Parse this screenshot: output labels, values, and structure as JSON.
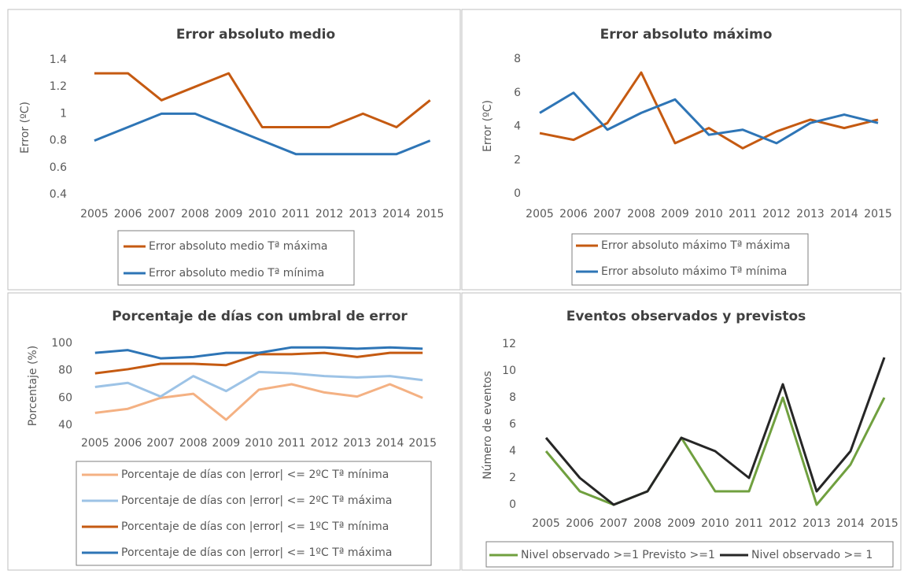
{
  "chart_data": [
    {
      "type": "line",
      "title": "Error absoluto medio",
      "y_label": "Error (ºC)",
      "categories": [
        "2005",
        "2006",
        "2007",
        "2008",
        "2009",
        "2010",
        "2011",
        "2012",
        "2013",
        "2014",
        "2015"
      ],
      "series": [
        {
          "name": "Error absoluto medio Tª máxima",
          "color": "#c55a11",
          "values": [
            1.3,
            1.3,
            1.1,
            1.2,
            1.3,
            0.9,
            0.9,
            0.9,
            1.0,
            0.9,
            1.1
          ]
        },
        {
          "name": "Error absoluto medio Tª mínima",
          "color": "#2e75b6",
          "values": [
            0.8,
            0.9,
            1.0,
            1.0,
            0.9,
            0.8,
            0.7,
            0.7,
            0.7,
            0.7,
            0.8
          ]
        }
      ],
      "ylim": [
        0.4,
        1.4
      ],
      "yticks": [
        0.4,
        0.6,
        0.8,
        1,
        1.2,
        1.4
      ],
      "grid": false
    },
    {
      "type": "line",
      "title": "Error absoluto máximo",
      "y_label": "Error (ºC)",
      "categories": [
        "2005",
        "2006",
        "2007",
        "2008",
        "2009",
        "2010",
        "2011",
        "2012",
        "2013",
        "2014",
        "2015"
      ],
      "series": [
        {
          "name": "Error absoluto máximo Tª máxima",
          "color": "#c55a11",
          "values": [
            3.6,
            3.2,
            4.2,
            7.2,
            3.0,
            3.9,
            2.7,
            3.7,
            4.4,
            3.9,
            4.4
          ]
        },
        {
          "name": "Error absoluto máximo Tª mínima",
          "color": "#2e75b6",
          "values": [
            4.8,
            6.0,
            3.8,
            4.8,
            5.6,
            3.5,
            3.8,
            3.0,
            4.2,
            4.7,
            4.2
          ]
        }
      ],
      "ylim": [
        0,
        8
      ],
      "yticks": [
        0,
        2,
        4,
        6,
        8
      ],
      "grid": false
    },
    {
      "type": "line",
      "title": "Porcentaje de días con umbral de error",
      "y_label": "Porcentaje (%)",
      "categories": [
        "2005",
        "2006",
        "2007",
        "2008",
        "2009",
        "2010",
        "2011",
        "2012",
        "2013",
        "2014",
        "2015"
      ],
      "series": [
        {
          "name": "Porcentaje de días con |error| <= 2ºC Tª mínima",
          "color": "#f4b183",
          "values": [
            49,
            52,
            60,
            63,
            44,
            66,
            70,
            64,
            61,
            70,
            60
          ]
        },
        {
          "name": "Porcentaje de días con |error| <= 2ºC Tª máxima",
          "color": "#9dc3e6",
          "values": [
            68,
            71,
            61,
            76,
            65,
            79,
            78,
            76,
            75,
            76,
            73
          ]
        },
        {
          "name": "Porcentaje de días con |error| <= 1ºC Tª mínima",
          "color": "#c55a11",
          "values": [
            78,
            81,
            85,
            85,
            84,
            92,
            92,
            93,
            90,
            93,
            93
          ]
        },
        {
          "name": "Porcentaje de días con |error| <= 1ºC Tª máxima",
          "color": "#2e75b6",
          "values": [
            93,
            95,
            89,
            90,
            93,
            93,
            97,
            97,
            96,
            97,
            96
          ]
        }
      ],
      "ylim": [
        40,
        100
      ],
      "yticks": [
        40,
        60,
        80,
        100
      ],
      "grid": false
    },
    {
      "type": "line",
      "title": "Eventos observados y previstos",
      "y_label": "Número de eventos",
      "categories": [
        "2005",
        "2006",
        "2007",
        "2008",
        "2009",
        "2010",
        "2011",
        "2012",
        "2013",
        "2014",
        "2015"
      ],
      "series": [
        {
          "name": "Nivel observado >=1 Previsto >=1",
          "color": "#70a03f",
          "values": [
            4,
            1,
            0,
            1,
            5,
            1,
            1,
            8,
            0,
            3,
            8
          ]
        },
        {
          "name": "Nivel observado >= 1",
          "color": "#262626",
          "values": [
            5,
            2,
            0,
            1,
            5,
            4,
            2,
            9,
            1,
            4,
            11
          ]
        }
      ],
      "ylim": [
        0,
        12
      ],
      "yticks": [
        0,
        2,
        4,
        6,
        8,
        10,
        12
      ],
      "grid": false
    }
  ]
}
